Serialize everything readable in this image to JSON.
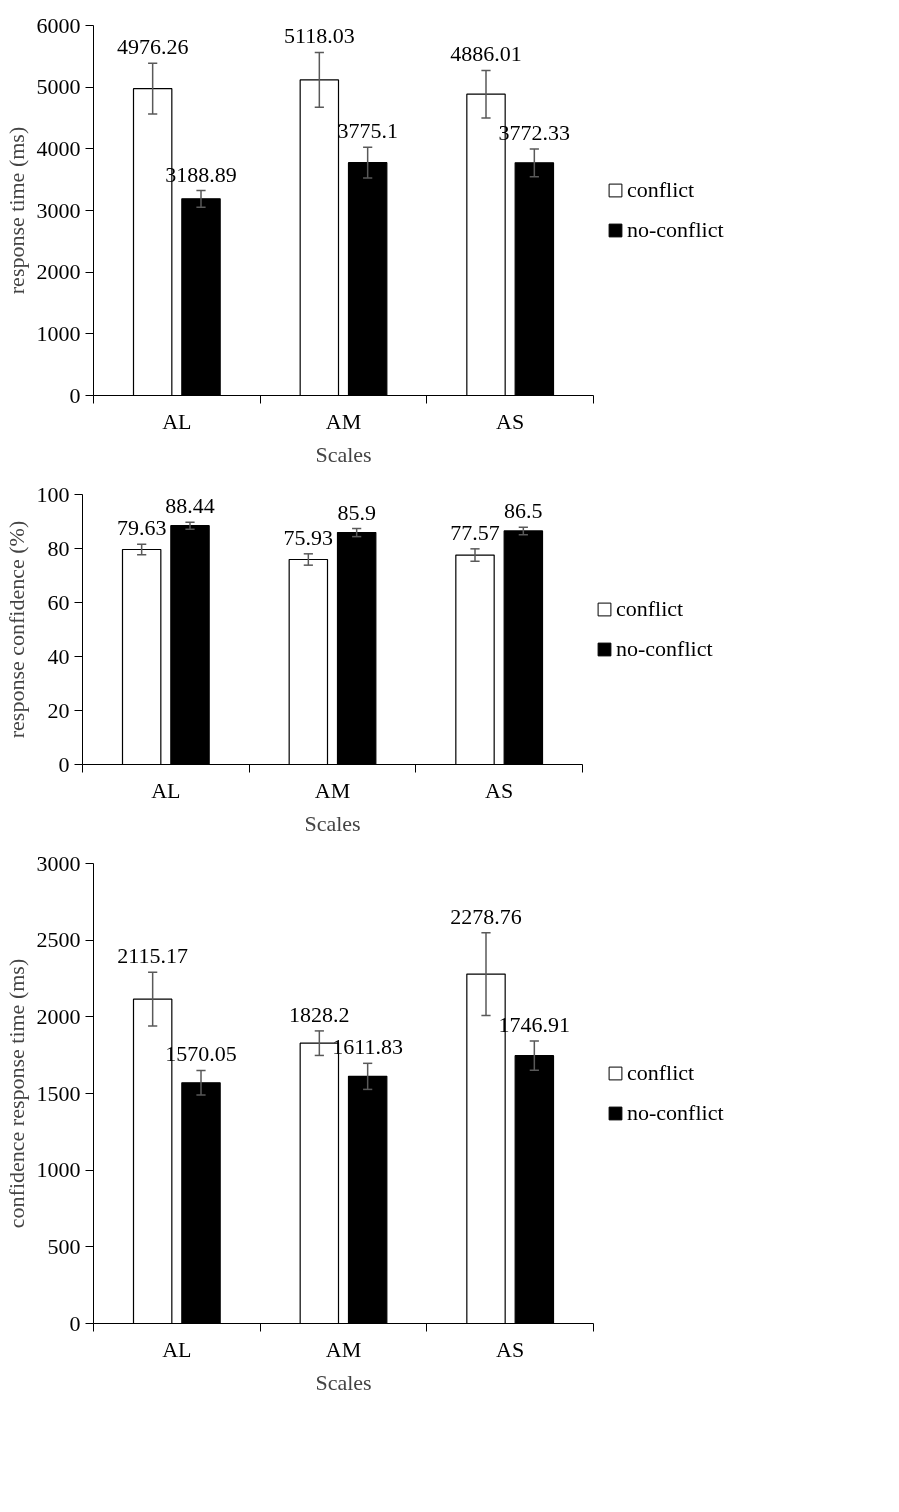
{
  "chart_data": [
    {
      "type": "bar",
      "categories": [
        "AL",
        "AM",
        "AS"
      ],
      "xlabel": "Scales",
      "ylabel": "response time (ms)",
      "ylim": [
        0,
        6000
      ],
      "yticks": [
        0,
        1000,
        2000,
        3000,
        4000,
        5000,
        6000
      ],
      "grid": false,
      "legend": "right",
      "data_labels": true,
      "series": [
        {
          "name": "conflict",
          "color": "#ffffff",
          "values": [
            4976.26,
            5118.03,
            4886.01
          ],
          "errors": [
            410,
            445,
            385
          ]
        },
        {
          "name": "no-conflict",
          "color": "#000000",
          "values": [
            3188.89,
            3775.1,
            3772.33
          ],
          "errors": [
            135,
            250,
            225
          ]
        }
      ]
    },
    {
      "type": "bar",
      "categories": [
        "AL",
        "AM",
        "AS"
      ],
      "xlabel": "Scales",
      "ylabel": "response confidence (%)",
      "ylim": [
        0,
        100
      ],
      "yticks": [
        0,
        20,
        40,
        60,
        80,
        100
      ],
      "grid": false,
      "legend": "right",
      "data_labels": true,
      "series": [
        {
          "name": "conflict",
          "color": "#ffffff",
          "values": [
            79.63,
            75.93,
            77.57
          ],
          "errors": [
            1.9,
            2.1,
            2.3
          ]
        },
        {
          "name": "no-conflict",
          "color": "#000000",
          "values": [
            88.44,
            85.9,
            86.5
          ],
          "errors": [
            1.3,
            1.5,
            1.4
          ]
        }
      ]
    },
    {
      "type": "bar",
      "categories": [
        "AL",
        "AM",
        "AS"
      ],
      "xlabel": "Scales",
      "ylabel": "confidence response time (ms)",
      "ylim": [
        0,
        3000
      ],
      "yticks": [
        0,
        500,
        1000,
        1500,
        2000,
        2500,
        3000
      ],
      "grid": false,
      "legend": "right",
      "data_labels": true,
      "series": [
        {
          "name": "conflict",
          "color": "#ffffff",
          "values": [
            2115.17,
            1828.2,
            2278.76
          ],
          "errors": [
            175,
            80,
            270
          ]
        },
        {
          "name": "no-conflict",
          "color": "#000000",
          "values": [
            1570.05,
            1611.83,
            1746.91
          ],
          "errors": [
            80,
            85,
            95
          ]
        }
      ]
    }
  ]
}
